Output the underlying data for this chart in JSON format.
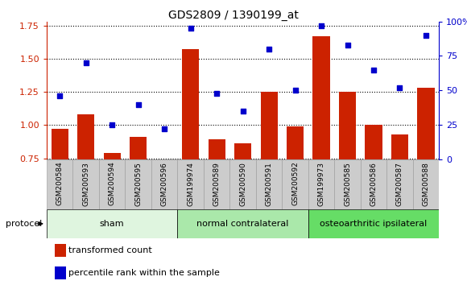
{
  "title": "GDS2809 / 1390199_at",
  "samples": [
    "GSM200584",
    "GSM200593",
    "GSM200594",
    "GSM200595",
    "GSM200596",
    "GSM199974",
    "GSM200589",
    "GSM200590",
    "GSM200591",
    "GSM200592",
    "GSM199973",
    "GSM200585",
    "GSM200586",
    "GSM200587",
    "GSM200588"
  ],
  "bar_values": [
    0.97,
    1.08,
    0.79,
    0.91,
    0.74,
    1.57,
    0.89,
    0.86,
    1.25,
    0.99,
    1.67,
    1.25,
    1.0,
    0.93,
    1.28
  ],
  "dot_values": [
    46,
    70,
    25,
    40,
    22,
    95,
    48,
    35,
    80,
    50,
    97,
    83,
    65,
    52,
    90
  ],
  "groups": [
    {
      "label": "sham",
      "start": 0,
      "end": 5,
      "color": "#dff5df"
    },
    {
      "label": "normal contralateral",
      "start": 5,
      "end": 10,
      "color": "#aae8aa"
    },
    {
      "label": "osteoarthritic ipsilateral",
      "start": 10,
      "end": 15,
      "color": "#66dd66"
    }
  ],
  "bar_color": "#cc2200",
  "dot_color": "#0000cc",
  "ylim_left": [
    0.74,
    1.78
  ],
  "ylim_right": [
    0,
    100
  ],
  "yticks_left": [
    0.75,
    1.0,
    1.25,
    1.5,
    1.75
  ],
  "yticks_right": [
    0,
    25,
    50,
    75,
    100
  ],
  "protocol_label": "protocol",
  "legend_bar": "transformed count",
  "legend_dot": "percentile rank within the sample",
  "tick_bg_color": "#cccccc",
  "tick_border_color": "#999999"
}
